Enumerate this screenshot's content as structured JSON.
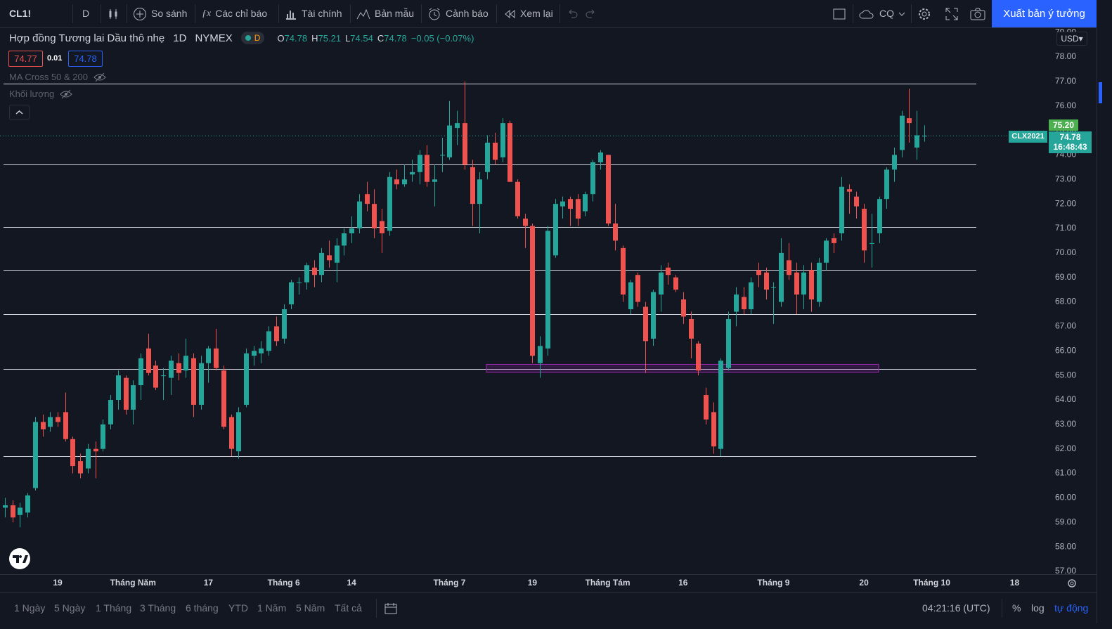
{
  "toolbar": {
    "symbol": "CL1!",
    "interval": "D",
    "items": [
      "So sánh",
      "Các chỉ báo",
      "Tài chính",
      "Bản mẫu",
      "Cảnh báo",
      "Xem lại"
    ],
    "cq": "CQ",
    "publish": "Xuất bản ý tưởng"
  },
  "legend": {
    "name": "Hợp đồng Tương lai Dầu thô nhẹ",
    "interval": "1D",
    "exchange": "NYMEX",
    "badge": "D",
    "o": "O",
    "h": "H",
    "l": "L",
    "c": "C",
    "change": "−0.05 (−0.07%)",
    "bid": "74.77",
    "spread": "0.01",
    "ask": "74.78",
    "indicators": [
      "MA Cross 50 & 200",
      "Khối lượng"
    ]
  },
  "price_scale": {
    "currency": "USD",
    "high_badge": "75.20",
    "countdown": "16:48:43",
    "symbol_badge": "CLX2021"
  },
  "bottom_bar": {
    "ranges": [
      "1 Ngày",
      "5 Ngày",
      "1 Tháng",
      "3 Tháng",
      "6 tháng",
      "YTD",
      "1 Năm",
      "5 Năm",
      "Tất cả"
    ],
    "clock": "04:21:16 (UTC)",
    "percent": "%",
    "log": "log",
    "auto": "tự động"
  },
  "chart_data": {
    "type": "candlestick",
    "up_color": "#26a69a",
    "down_color": "#ef5350",
    "categories": [
      null,
      null,
      null,
      null,
      null,
      null,
      null,
      "19",
      null,
      null,
      null,
      null,
      null,
      null,
      null,
      null,
      null,
      "Tháng Năm",
      null,
      null,
      null,
      null,
      null,
      null,
      null,
      null,
      null,
      "17",
      null,
      null,
      null,
      null,
      null,
      null,
      null,
      null,
      null,
      "Tháng 6",
      null,
      null,
      null,
      null,
      null,
      null,
      null,
      null,
      "14",
      null,
      null,
      null,
      null,
      null,
      null,
      null,
      null,
      null,
      null,
      null,
      null,
      "Tháng 7",
      null,
      null,
      null,
      null,
      null,
      null,
      null,
      null,
      null,
      null,
      "19",
      null,
      null,
      null,
      null,
      null,
      null,
      null,
      null,
      null,
      "Tháng Tám",
      null,
      null,
      null,
      null,
      null,
      null,
      null,
      null,
      null,
      "16",
      null,
      null,
      null,
      null,
      null,
      null,
      null,
      null,
      null,
      null,
      null,
      "Tháng 9",
      null,
      null,
      null,
      null,
      null,
      null,
      null,
      null,
      null,
      null,
      null,
      "20",
      null,
      null,
      null,
      null,
      null,
      null,
      null,
      null,
      "Tháng 10",
      null,
      null,
      null,
      null,
      null,
      null,
      null,
      null,
      null,
      null,
      "18"
    ],
    "ohlc": [
      [
        59.6,
        60.0,
        59.2,
        59.7
      ],
      [
        59.7,
        59.9,
        59.0,
        59.2
      ],
      [
        59.3,
        59.8,
        58.8,
        59.6
      ],
      [
        59.4,
        60.2,
        59.2,
        60.1
      ],
      [
        60.4,
        63.3,
        60.3,
        63.1
      ],
      [
        63.1,
        63.4,
        62.5,
        62.8
      ],
      [
        62.9,
        63.5,
        62.7,
        63.3
      ],
      [
        63.3,
        63.5,
        62.9,
        63.1
      ],
      [
        63.5,
        64.3,
        62.3,
        62.4
      ],
      [
        62.4,
        62.5,
        61.0,
        61.3
      ],
      [
        61.5,
        61.8,
        60.8,
        61.0
      ],
      [
        61.2,
        62.2,
        61.0,
        62.0
      ],
      [
        62.0,
        62.3,
        60.8,
        61.9
      ],
      [
        62.0,
        63.2,
        61.9,
        63.0
      ],
      [
        63.0,
        64.2,
        62.8,
        64.0
      ],
      [
        64.0,
        65.2,
        63.6,
        65.0
      ],
      [
        64.9,
        65.0,
        63.4,
        63.6
      ],
      [
        63.6,
        64.8,
        63.0,
        64.6
      ],
      [
        64.6,
        65.9,
        64.0,
        65.7
      ],
      [
        66.1,
        66.7,
        65.0,
        65.1
      ],
      [
        65.4,
        65.6,
        64.4,
        64.5
      ],
      [
        65.0,
        65.3,
        64.0,
        65.0
      ],
      [
        64.9,
        65.8,
        64.2,
        65.6
      ],
      [
        65.5,
        65.9,
        64.8,
        65.1
      ],
      [
        65.2,
        66.5,
        64.9,
        65.8
      ],
      [
        65.7,
        65.9,
        63.3,
        63.8
      ],
      [
        63.8,
        65.8,
        63.6,
        65.5
      ],
      [
        65.5,
        66.2,
        64.7,
        66.1
      ],
      [
        66.1,
        66.9,
        65.2,
        65.3
      ],
      [
        65.2,
        65.4,
        62.8,
        62.9
      ],
      [
        63.3,
        63.4,
        61.7,
        62.0
      ],
      [
        61.9,
        63.7,
        61.6,
        63.5
      ],
      [
        63.8,
        66.1,
        63.7,
        65.9
      ],
      [
        65.8,
        66.2,
        65.4,
        66.0
      ],
      [
        65.9,
        66.4,
        65.5,
        66.1
      ],
      [
        66.0,
        67.0,
        65.8,
        66.8
      ],
      [
        67.0,
        67.4,
        66.2,
        66.4
      ],
      [
        66.5,
        67.9,
        66.3,
        67.7
      ],
      [
        67.9,
        68.9,
        67.7,
        68.8
      ],
      [
        68.8,
        69.0,
        68.3,
        68.8
      ],
      [
        68.8,
        69.6,
        68.5,
        69.5
      ],
      [
        69.4,
        69.7,
        68.6,
        69.1
      ],
      [
        69.1,
        70.2,
        68.8,
        70.0
      ],
      [
        69.9,
        70.5,
        69.4,
        69.7
      ],
      [
        69.6,
        70.6,
        68.8,
        70.3
      ],
      [
        70.3,
        71.0,
        69.9,
        70.8
      ],
      [
        70.8,
        71.5,
        70.4,
        71.0
      ],
      [
        71.0,
        72.4,
        70.8,
        72.1
      ],
      [
        72.4,
        72.9,
        71.7,
        72.0
      ],
      [
        72.0,
        72.6,
        70.6,
        71.0
      ],
      [
        71.3,
        71.8,
        70.0,
        70.8
      ],
      [
        70.9,
        73.3,
        70.7,
        73.1
      ],
      [
        73.0,
        73.4,
        72.6,
        72.8
      ],
      [
        72.8,
        73.6,
        72.7,
        73.0
      ],
      [
        73.2,
        73.8,
        72.9,
        73.3
      ],
      [
        73.3,
        74.2,
        72.8,
        74.0
      ],
      [
        74.0,
        74.4,
        72.7,
        72.9
      ],
      [
        72.9,
        73.6,
        71.9,
        73.0
      ],
      [
        74.0,
        74.7,
        73.3,
        74.0
      ],
      [
        73.9,
        76.2,
        73.8,
        75.2
      ],
      [
        75.1,
        75.8,
        74.4,
        75.3
      ],
      [
        75.3,
        77.0,
        73.4,
        73.6
      ],
      [
        73.5,
        73.8,
        71.1,
        72.0
      ],
      [
        72.0,
        73.3,
        70.8,
        73.0
      ],
      [
        73.3,
        74.8,
        73.0,
        74.5
      ],
      [
        74.5,
        74.9,
        73.6,
        73.8
      ],
      [
        73.9,
        75.5,
        73.7,
        75.3
      ],
      [
        75.3,
        75.4,
        72.9,
        72.9
      ],
      [
        72.9,
        73.0,
        71.4,
        71.5
      ],
      [
        71.4,
        71.6,
        70.2,
        71.1
      ],
      [
        71.1,
        71.2,
        65.5,
        65.8
      ],
      [
        65.5,
        66.6,
        64.9,
        66.2
      ],
      [
        66.1,
        71.1,
        65.8,
        70.9
      ],
      [
        69.9,
        72.2,
        69.8,
        72.0
      ],
      [
        71.9,
        72.3,
        71.4,
        72.1
      ],
      [
        72.2,
        72.3,
        71.1,
        71.8
      ],
      [
        72.2,
        72.4,
        71.1,
        71.4
      ],
      [
        71.7,
        72.5,
        71.5,
        72.4
      ],
      [
        72.4,
        73.8,
        72.1,
        73.7
      ],
      [
        73.7,
        74.2,
        73.4,
        74.1
      ],
      [
        74.0,
        74.0,
        71.1,
        71.2
      ],
      [
        71.2,
        72.0,
        70.1,
        70.5
      ],
      [
        70.2,
        70.3,
        68.0,
        68.3
      ],
      [
        67.7,
        68.9,
        67.5,
        68.8
      ],
      [
        69.1,
        69.2,
        67.8,
        68.0
      ],
      [
        67.8,
        68.0,
        65.1,
        66.4
      ],
      [
        66.5,
        68.5,
        66.2,
        68.4
      ],
      [
        68.3,
        69.5,
        67.6,
        69.2
      ],
      [
        69.4,
        69.6,
        68.7,
        69.1
      ],
      [
        69.0,
        69.1,
        68.4,
        68.5
      ],
      [
        68.1,
        68.4,
        67.1,
        67.4
      ],
      [
        67.3,
        67.6,
        65.7,
        66.5
      ],
      [
        66.3,
        66.4,
        65.0,
        65.2
      ],
      [
        64.2,
        64.5,
        63.0,
        63.2
      ],
      [
        63.5,
        63.9,
        61.8,
        62.1
      ],
      [
        62.0,
        65.7,
        61.7,
        65.6
      ],
      [
        65.3,
        67.6,
        65.2,
        67.3
      ],
      [
        67.6,
        68.6,
        67.0,
        68.3
      ],
      [
        68.2,
        68.6,
        67.5,
        67.7
      ],
      [
        67.7,
        69.0,
        67.5,
        68.8
      ],
      [
        69.3,
        69.6,
        68.6,
        69.1
      ],
      [
        69.2,
        69.4,
        68.1,
        68.5
      ],
      [
        68.6,
        68.8,
        67.1,
        68.6
      ],
      [
        68.0,
        70.6,
        67.8,
        70.0
      ],
      [
        69.7,
        70.4,
        68.9,
        69.1
      ],
      [
        69.2,
        69.6,
        67.5,
        68.3
      ],
      [
        68.3,
        69.5,
        67.7,
        69.2
      ],
      [
        69.3,
        69.6,
        67.6,
        68.1
      ],
      [
        68.0,
        69.8,
        67.8,
        69.6
      ],
      [
        69.6,
        70.6,
        69.3,
        70.5
      ],
      [
        70.6,
        70.8,
        70.0,
        70.4
      ],
      [
        70.8,
        73.1,
        70.5,
        72.7
      ],
      [
        72.6,
        72.8,
        71.6,
        72.5
      ],
      [
        72.3,
        72.5,
        71.4,
        71.9
      ],
      [
        71.8,
        72.0,
        69.6,
        70.1
      ],
      [
        70.4,
        71.6,
        69.4,
        70.4
      ],
      [
        70.8,
        72.3,
        70.4,
        72.2
      ],
      [
        72.2,
        73.5,
        71.8,
        73.4
      ],
      [
        73.4,
        74.3,
        72.9,
        74.0
      ],
      [
        74.2,
        75.8,
        73.9,
        75.6
      ],
      [
        75.5,
        76.7,
        74.5,
        75.3
      ],
      [
        74.3,
        75.8,
        73.8,
        74.8
      ],
      [
        74.78,
        75.21,
        74.54,
        74.78
      ],
      null,
      null,
      null,
      null,
      null,
      null,
      null,
      null,
      null,
      null,
      null,
      null
    ],
    "hlines": [
      76.9,
      73.6,
      71.05,
      69.3,
      67.5,
      65.25,
      61.7
    ],
    "zone": [
      65.13,
      65.45
    ],
    "ylim": [
      56.885,
      79.176
    ],
    "yticks": [
      {
        "value": 57,
        "label": "57.00"
      },
      {
        "value": 58,
        "label": "58.00"
      },
      {
        "value": 59,
        "label": "59.00"
      },
      {
        "value": 60,
        "label": "60.00"
      },
      {
        "value": 61,
        "label": "61.00"
      },
      {
        "value": 62,
        "label": "62.00"
      },
      {
        "value": 63,
        "label": "63.00"
      },
      {
        "value": 64,
        "label": "64.00"
      },
      {
        "value": 65,
        "label": "65.00"
      },
      {
        "value": 66,
        "label": "66.00"
      },
      {
        "value": 67,
        "label": "67.00"
      },
      {
        "value": 68,
        "label": "68.00"
      },
      {
        "value": 69,
        "label": "69.00"
      },
      {
        "value": 70,
        "label": "70.00"
      },
      {
        "value": 71,
        "label": "71.00"
      },
      {
        "value": 72,
        "label": "72.00"
      },
      {
        "value": 73,
        "label": "73.00"
      },
      {
        "value": 74,
        "label": "74.00"
      },
      {
        "value": 75,
        "label": "75.00"
      },
      {
        "value": 76,
        "label": "76.00"
      },
      {
        "value": 77,
        "label": "77.00"
      },
      {
        "value": 78,
        "label": "78.00"
      },
      {
        "value": 79,
        "label": "79.00"
      }
    ]
  }
}
